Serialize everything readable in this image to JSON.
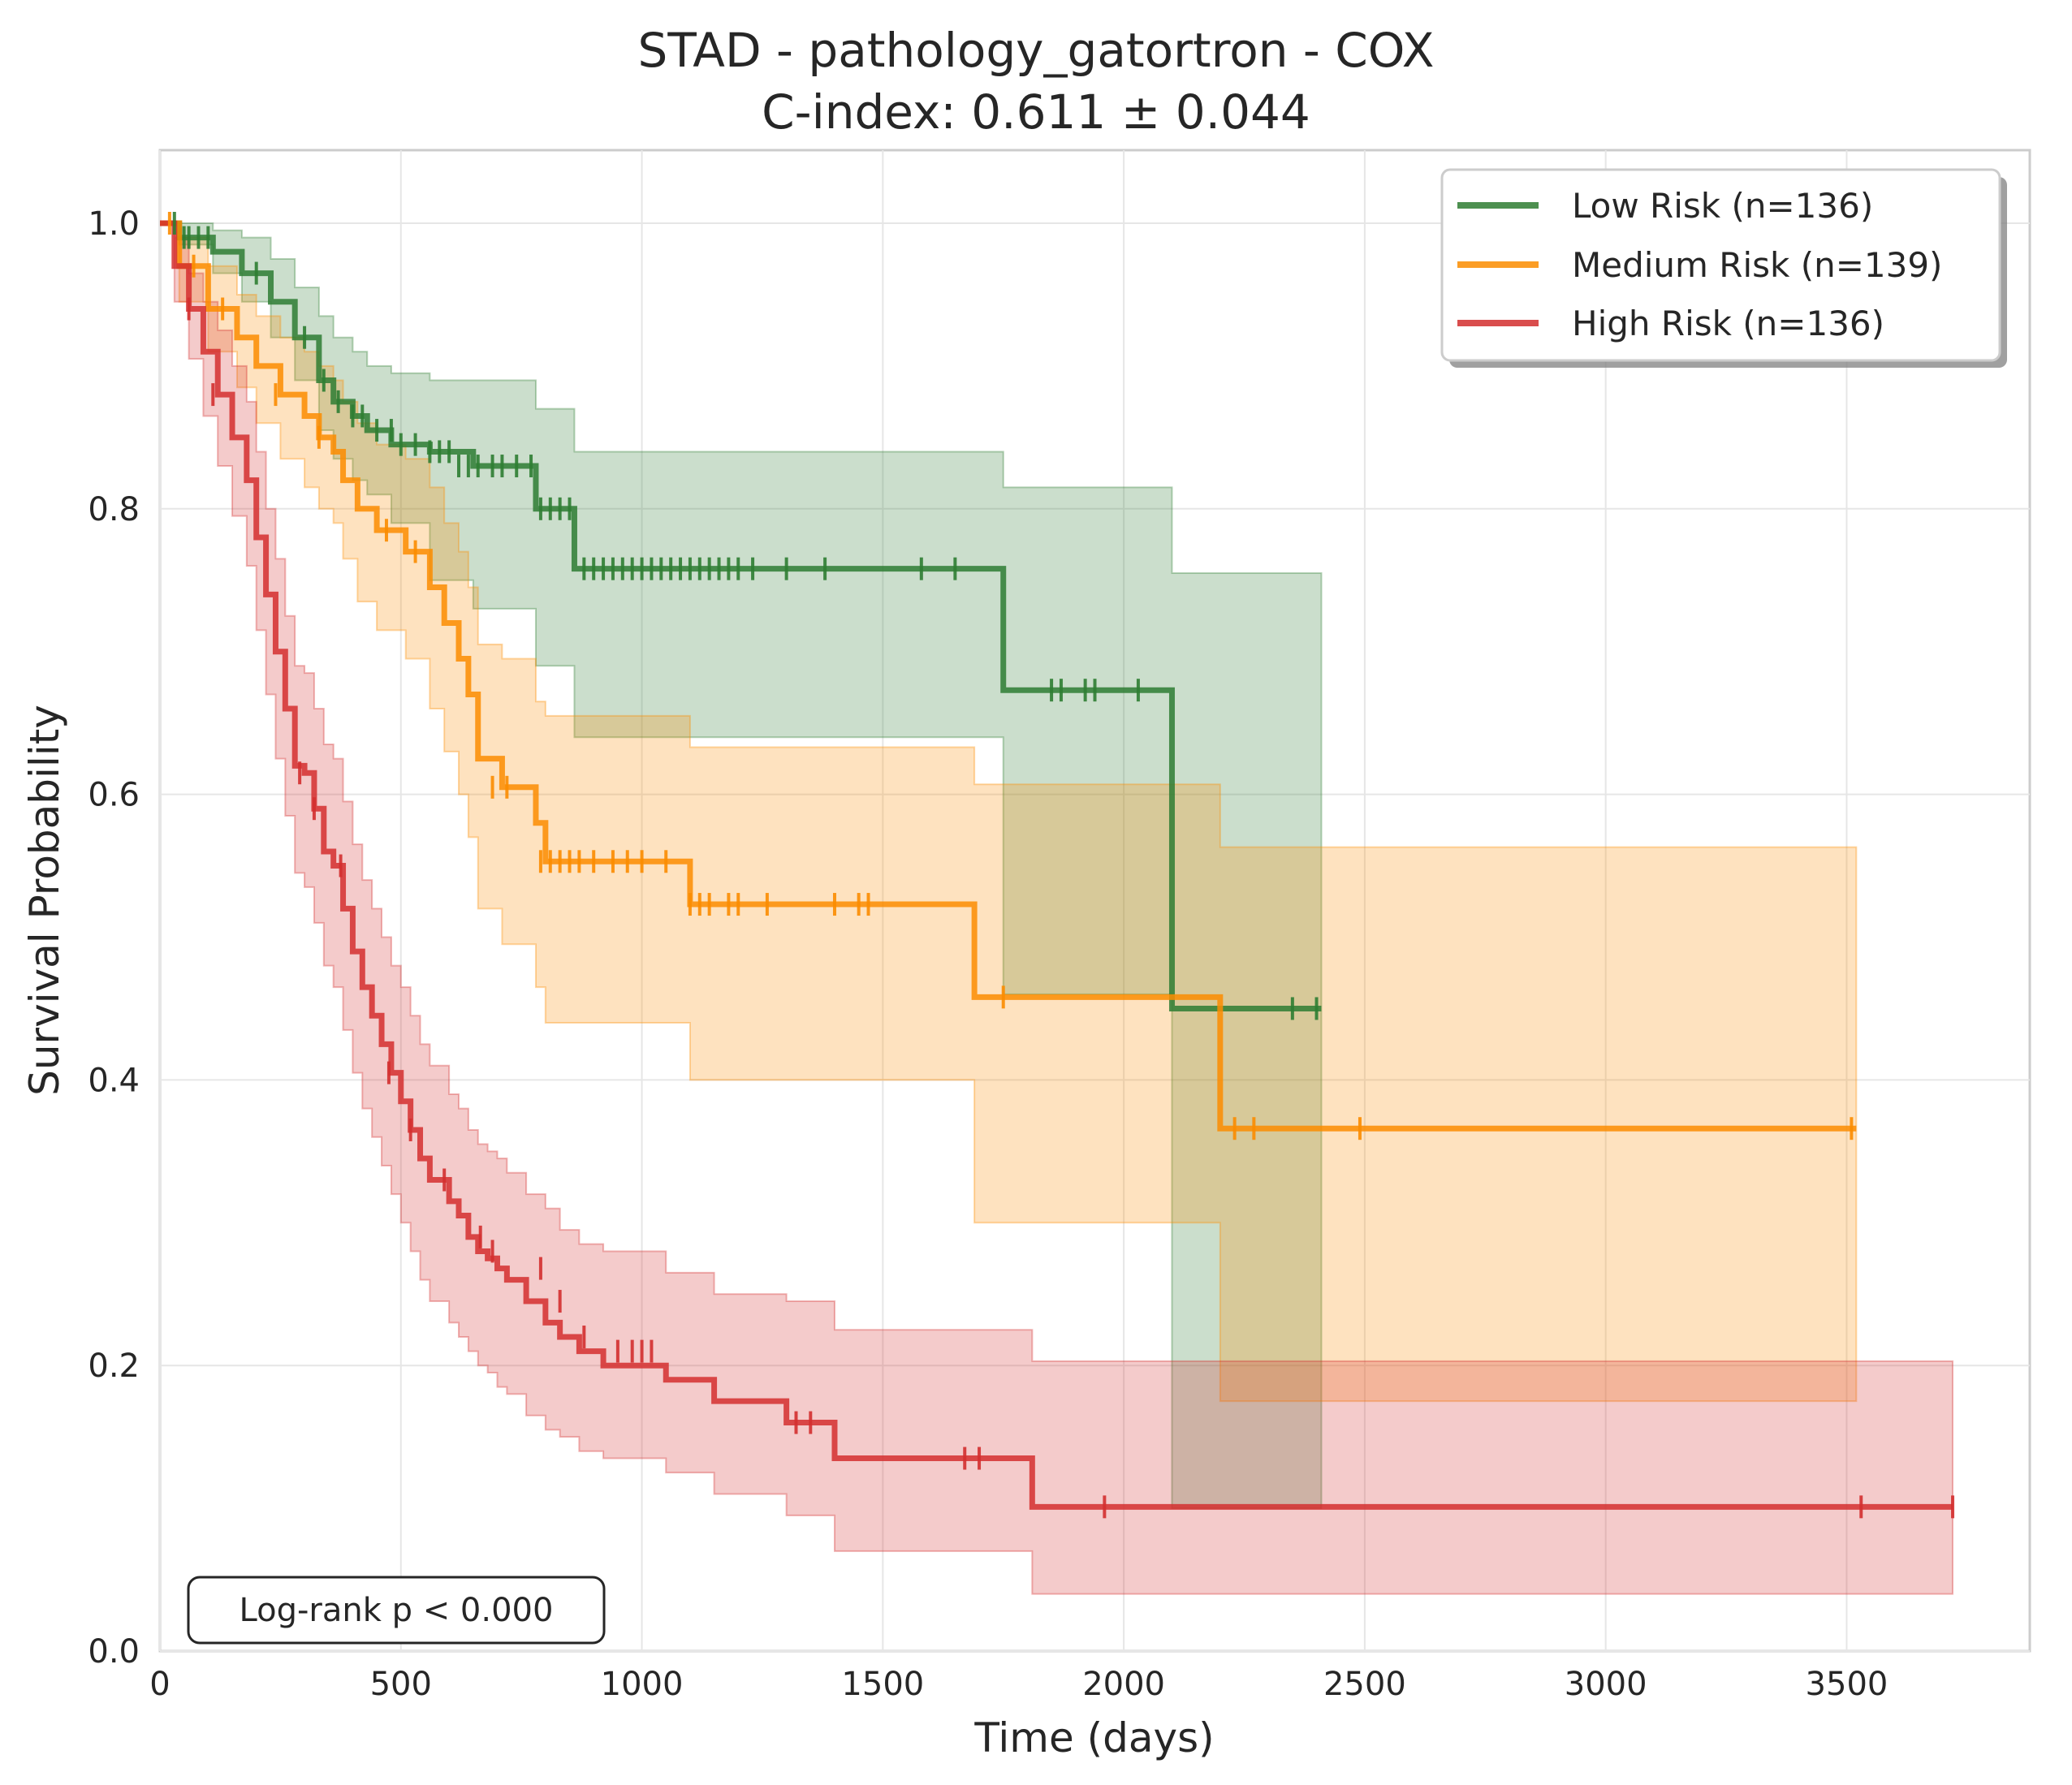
{
  "chart_data": {
    "type": "line",
    "subtype": "kaplan-meier",
    "title": "STAD - pathology_gatortron - COX",
    "subtitle": "C-index: 0.611 ± 0.044",
    "xlabel": "Time (days)",
    "ylabel": "Survival Probability",
    "xlim": [
      0,
      3880
    ],
    "ylim": [
      0,
      1.05
    ],
    "xticks": [
      0,
      500,
      1000,
      1500,
      2000,
      2500,
      3000,
      3500
    ],
    "yticks": [
      0.0,
      0.2,
      0.4,
      0.6,
      0.8,
      1.0
    ],
    "xtick_labels": [
      "0",
      "500",
      "1000",
      "1500",
      "2000",
      "2500",
      "3000",
      "3500"
    ],
    "ytick_labels": [
      "0.0",
      "0.2",
      "0.4",
      "0.6",
      "0.8",
      "1.0"
    ],
    "grid": true,
    "legend_position": "top-right",
    "annotation": "Log-rank p < 0.000",
    "series": [
      {
        "name": "Low Risk (n=136)",
        "color": "#2e7d32",
        "x": [
          0,
          40,
          110,
          170,
          230,
          280,
          330,
          360,
          400,
          430,
          480,
          560,
          650,
          780,
          860,
          1750,
          2100,
          2410
        ],
        "y": [
          1.0,
          0.99,
          0.98,
          0.965,
          0.945,
          0.92,
          0.89,
          0.875,
          0.865,
          0.855,
          0.845,
          0.84,
          0.83,
          0.8,
          0.758,
          0.673,
          0.45,
          0.45
        ],
        "ci_lower": [
          1.0,
          0.985,
          0.965,
          0.945,
          0.92,
          0.89,
          0.855,
          0.835,
          0.82,
          0.81,
          0.79,
          0.75,
          0.73,
          0.69,
          0.64,
          0.46,
          0.1,
          0.1
        ],
        "ci_upper": [
          1.0,
          1.0,
          0.995,
          0.99,
          0.975,
          0.955,
          0.935,
          0.92,
          0.91,
          0.9,
          0.895,
          0.89,
          0.89,
          0.87,
          0.84,
          0.815,
          0.755,
          0.755
        ],
        "censor_x": [
          30,
          50,
          60,
          80,
          100,
          200,
          300,
          340,
          370,
          400,
          420,
          450,
          480,
          500,
          530,
          560,
          580,
          600,
          620,
          640,
          660,
          690,
          710,
          740,
          770,
          790,
          810,
          830,
          850,
          880,
          900,
          920,
          940,
          960,
          980,
          1000,
          1020,
          1040,
          1060,
          1080,
          1100,
          1120,
          1140,
          1160,
          1180,
          1200,
          1230,
          1300,
          1380,
          1580,
          1650,
          1850,
          1870,
          1920,
          1940,
          2030,
          2350,
          2400
        ],
        "censor_y": [
          1.0,
          0.99,
          0.99,
          0.99,
          0.99,
          0.965,
          0.92,
          0.89,
          0.875,
          0.865,
          0.865,
          0.855,
          0.855,
          0.845,
          0.845,
          0.84,
          0.84,
          0.84,
          0.83,
          0.83,
          0.83,
          0.83,
          0.83,
          0.83,
          0.83,
          0.8,
          0.8,
          0.8,
          0.8,
          0.758,
          0.758,
          0.758,
          0.758,
          0.758,
          0.758,
          0.758,
          0.758,
          0.758,
          0.758,
          0.758,
          0.758,
          0.758,
          0.758,
          0.758,
          0.758,
          0.758,
          0.758,
          0.758,
          0.758,
          0.758,
          0.758,
          0.673,
          0.673,
          0.673,
          0.673,
          0.673,
          0.45,
          0.45
        ]
      },
      {
        "name": "Medium Risk (n=139)",
        "color": "#fb8c00",
        "x": [
          0,
          40,
          100,
          160,
          200,
          250,
          300,
          330,
          360,
          380,
          410,
          450,
          510,
          560,
          590,
          620,
          640,
          660,
          710,
          780,
          800,
          1090,
          1100,
          1680,
          1690,
          2190,
          2200,
          3520
        ],
        "y": [
          1.0,
          0.97,
          0.94,
          0.92,
          0.9,
          0.88,
          0.865,
          0.85,
          0.84,
          0.82,
          0.8,
          0.785,
          0.77,
          0.745,
          0.72,
          0.695,
          0.67,
          0.625,
          0.605,
          0.58,
          0.553,
          0.553,
          0.523,
          0.523,
          0.458,
          0.458,
          0.366,
          0.366
        ],
        "ci_lower": [
          1.0,
          0.945,
          0.91,
          0.885,
          0.86,
          0.835,
          0.815,
          0.8,
          0.79,
          0.765,
          0.735,
          0.715,
          0.695,
          0.66,
          0.63,
          0.6,
          0.57,
          0.52,
          0.495,
          0.465,
          0.44,
          0.44,
          0.4,
          0.4,
          0.3,
          0.3,
          0.175,
          0.175
        ],
        "ci_upper": [
          1.0,
          0.99,
          0.97,
          0.95,
          0.935,
          0.92,
          0.91,
          0.9,
          0.89,
          0.875,
          0.86,
          0.845,
          0.835,
          0.815,
          0.79,
          0.77,
          0.745,
          0.705,
          0.695,
          0.665,
          0.655,
          0.655,
          0.633,
          0.633,
          0.607,
          0.607,
          0.563,
          0.563
        ],
        "censor_x": [
          20,
          70,
          130,
          240,
          330,
          470,
          530,
          690,
          720,
          790,
          810,
          830,
          850,
          870,
          900,
          940,
          970,
          1000,
          1050,
          1100,
          1120,
          1140,
          1180,
          1200,
          1260,
          1400,
          1450,
          1470,
          1750,
          2230,
          2270,
          2490,
          3510
        ],
        "censor_y": [
          1.0,
          0.97,
          0.94,
          0.88,
          0.85,
          0.785,
          0.77,
          0.605,
          0.605,
          0.553,
          0.553,
          0.553,
          0.553,
          0.553,
          0.553,
          0.553,
          0.553,
          0.553,
          0.553,
          0.523,
          0.523,
          0.523,
          0.523,
          0.523,
          0.523,
          0.523,
          0.523,
          0.523,
          0.458,
          0.366,
          0.366,
          0.366,
          0.366
        ]
      },
      {
        "name": "High Risk (n=136)",
        "color": "#d32f2f",
        "x": [
          0,
          30,
          60,
          90,
          120,
          150,
          180,
          200,
          220,
          240,
          260,
          280,
          300,
          320,
          340,
          360,
          380,
          400,
          420,
          440,
          460,
          480,
          500,
          520,
          540,
          560,
          600,
          620,
          640,
          660,
          680,
          700,
          720,
          760,
          800,
          830,
          870,
          920,
          1050,
          1150,
          1300,
          1400,
          1810,
          3720
        ],
        "y": [
          1.0,
          0.97,
          0.94,
          0.91,
          0.88,
          0.85,
          0.82,
          0.78,
          0.74,
          0.7,
          0.66,
          0.62,
          0.615,
          0.59,
          0.56,
          0.55,
          0.52,
          0.49,
          0.465,
          0.445,
          0.425,
          0.405,
          0.385,
          0.365,
          0.345,
          0.33,
          0.315,
          0.305,
          0.29,
          0.28,
          0.275,
          0.268,
          0.26,
          0.245,
          0.23,
          0.22,
          0.21,
          0.2,
          0.19,
          0.175,
          0.16,
          0.135,
          0.101,
          0.101
        ],
        "ci_lower": [
          1.0,
          0.945,
          0.905,
          0.865,
          0.83,
          0.795,
          0.76,
          0.715,
          0.67,
          0.625,
          0.585,
          0.545,
          0.535,
          0.51,
          0.48,
          0.465,
          0.435,
          0.405,
          0.38,
          0.36,
          0.34,
          0.32,
          0.3,
          0.28,
          0.26,
          0.245,
          0.23,
          0.22,
          0.21,
          0.2,
          0.195,
          0.185,
          0.18,
          0.165,
          0.155,
          0.15,
          0.14,
          0.135,
          0.125,
          0.11,
          0.095,
          0.07,
          0.04,
          0.04
        ],
        "ci_upper": [
          1.0,
          0.99,
          0.965,
          0.945,
          0.925,
          0.9,
          0.875,
          0.84,
          0.8,
          0.765,
          0.725,
          0.69,
          0.685,
          0.66,
          0.635,
          0.625,
          0.595,
          0.565,
          0.54,
          0.52,
          0.5,
          0.48,
          0.465,
          0.445,
          0.425,
          0.41,
          0.39,
          0.38,
          0.365,
          0.355,
          0.35,
          0.345,
          0.335,
          0.32,
          0.31,
          0.295,
          0.285,
          0.28,
          0.265,
          0.25,
          0.245,
          0.225,
          0.203,
          0.203
        ],
        "censor_x": [
          60,
          110,
          290,
          320,
          375,
          475,
          520,
          590,
          665,
          690,
          790,
          830,
          880,
          950,
          980,
          1000,
          1020,
          1320,
          1350,
          1670,
          1700,
          1960,
          3530,
          3720
        ],
        "censor_y": [
          0.94,
          0.88,
          0.615,
          0.59,
          0.55,
          0.405,
          0.365,
          0.33,
          0.29,
          0.28,
          0.268,
          0.245,
          0.22,
          0.21,
          0.21,
          0.21,
          0.21,
          0.16,
          0.16,
          0.135,
          0.135,
          0.101,
          0.101,
          0.101
        ]
      }
    ]
  }
}
